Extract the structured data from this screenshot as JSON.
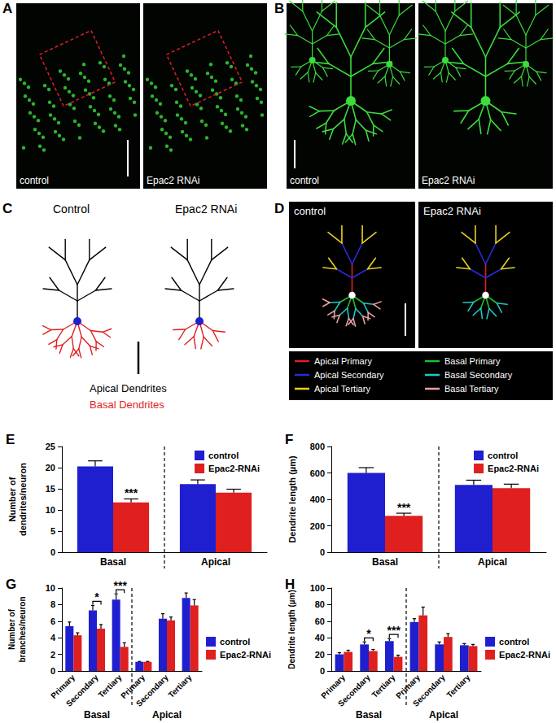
{
  "figure": [
    {
      "panel": "A",
      "images": [
        "control",
        "Epac2 RNAi"
      ]
    },
    {
      "panel": "B",
      "images": [
        "control",
        "Epac2 RNAi"
      ]
    },
    {
      "panel": "C",
      "images": [
        "Control",
        "Epac2 RNAi"
      ],
      "legend": [
        {
          "name": "Apical Dendrites",
          "color": "#000000"
        },
        {
          "name": "Basal Dendrites",
          "color": "#e01f1f"
        }
      ]
    },
    {
      "panel": "D",
      "images": [
        "control",
        "Epac2 RNAi"
      ],
      "legend": [
        {
          "name": "Apical Primary",
          "color": "#e01f1f"
        },
        {
          "name": "Apical Secondary",
          "color": "#2a2ad8"
        },
        {
          "name": "Apical Tertiary",
          "color": "#e8d020"
        },
        {
          "name": "Basal Primary",
          "color": "#20c020"
        },
        {
          "name": "Basal Secondary",
          "color": "#20c8c8"
        },
        {
          "name": "Basal Tertiary",
          "color": "#e8a0a0"
        }
      ]
    }
  ],
  "chart_data": [
    {
      "panel": "E",
      "type": "bar",
      "categories": [
        "Basal",
        "Apical"
      ],
      "y_label": "Number of\ndendrites/neuron",
      "ylim": [
        0,
        25
      ],
      "yticks": [
        0,
        5,
        10,
        15,
        20,
        25
      ],
      "grid": false,
      "legend": "upper right",
      "series": [
        {
          "name": "control",
          "color": "#1f1fd0",
          "values": [
            20.3,
            16.1
          ],
          "errors": [
            1.3,
            1.0
          ]
        },
        {
          "name": "Epac2-RNAi",
          "color": "#e01f1f",
          "values": [
            11.8,
            14.1
          ],
          "errors": [
            0.8,
            0.8
          ]
        }
      ],
      "annotations": [
        {
          "text": "***",
          "category_index": 0,
          "series": "Epac2-RNAi"
        }
      ]
    },
    {
      "panel": "F",
      "type": "bar",
      "categories": [
        "Basal",
        "Apical"
      ],
      "y_label": "Dendrite length (µm)",
      "ylim": [
        0,
        800
      ],
      "yticks": [
        0,
        200,
        400,
        600,
        800
      ],
      "grid": false,
      "legend": "upper right",
      "series": [
        {
          "name": "control",
          "color": "#1f1fd0",
          "values": [
            600,
            510
          ],
          "errors": [
            40,
            35
          ]
        },
        {
          "name": "Epac2-RNAi",
          "color": "#e01f1f",
          "values": [
            275,
            485
          ],
          "errors": [
            20,
            30
          ]
        }
      ],
      "annotations": [
        {
          "text": "***",
          "category_index": 0,
          "series": "Epac2-RNAi"
        }
      ]
    },
    {
      "panel": "G",
      "type": "bar",
      "categories": [
        "Primary",
        "Secondary",
        "Tertiary",
        "Primary",
        "Secondary",
        "Tertiary"
      ],
      "category_groups": [
        "Basal",
        "Basal",
        "Basal",
        "Apical",
        "Apical",
        "Apical"
      ],
      "y_label": "Number of\nbranches/neuron",
      "ylim": [
        0,
        10
      ],
      "yticks": [
        0,
        2,
        4,
        6,
        8,
        10
      ],
      "grid": false,
      "legend": "right",
      "series": [
        {
          "name": "control",
          "color": "#1f1fd0",
          "values": [
            5.4,
            7.3,
            8.6,
            1.1,
            6.3,
            8.8
          ],
          "errors": [
            0.5,
            0.6,
            0.7,
            0.05,
            0.6,
            0.6
          ]
        },
        {
          "name": "Epac2-RNAi",
          "color": "#e01f1f",
          "values": [
            4.3,
            5.1,
            2.9,
            1.1,
            6.1,
            7.9
          ],
          "errors": [
            0.3,
            0.5,
            0.5,
            0.05,
            0.4,
            0.7
          ]
        }
      ],
      "annotations": [
        {
          "text": "*",
          "category_index": 1,
          "bracket": true
        },
        {
          "text": "***",
          "category_index": 2,
          "bracket": true
        }
      ]
    },
    {
      "panel": "H",
      "type": "bar",
      "categories": [
        "Primary",
        "Secondary",
        "Tertiary",
        "Primary",
        "Secondary",
        "Tertiary"
      ],
      "category_groups": [
        "Basal",
        "Basal",
        "Basal",
        "Apical",
        "Apical",
        "Apical"
      ],
      "y_label": "Dendrite length (µm)",
      "ylim": [
        0,
        100
      ],
      "yticks": [
        0,
        20,
        40,
        60,
        80,
        100
      ],
      "grid": false,
      "legend": "right",
      "series": [
        {
          "name": "control",
          "color": "#1f1fd0",
          "values": [
            20,
            32,
            36,
            59,
            32,
            31
          ],
          "errors": [
            2,
            3,
            3,
            4,
            3,
            2
          ]
        },
        {
          "name": "Epac2-RNAi",
          "color": "#e01f1f",
          "values": [
            23,
            24,
            17,
            67,
            41,
            30
          ],
          "errors": [
            2,
            2,
            2,
            10,
            4,
            2
          ]
        }
      ],
      "annotations": [
        {
          "text": "*",
          "category_index": 1,
          "bracket": true
        },
        {
          "text": "***",
          "category_index": 2,
          "bracket": true
        }
      ]
    }
  ]
}
